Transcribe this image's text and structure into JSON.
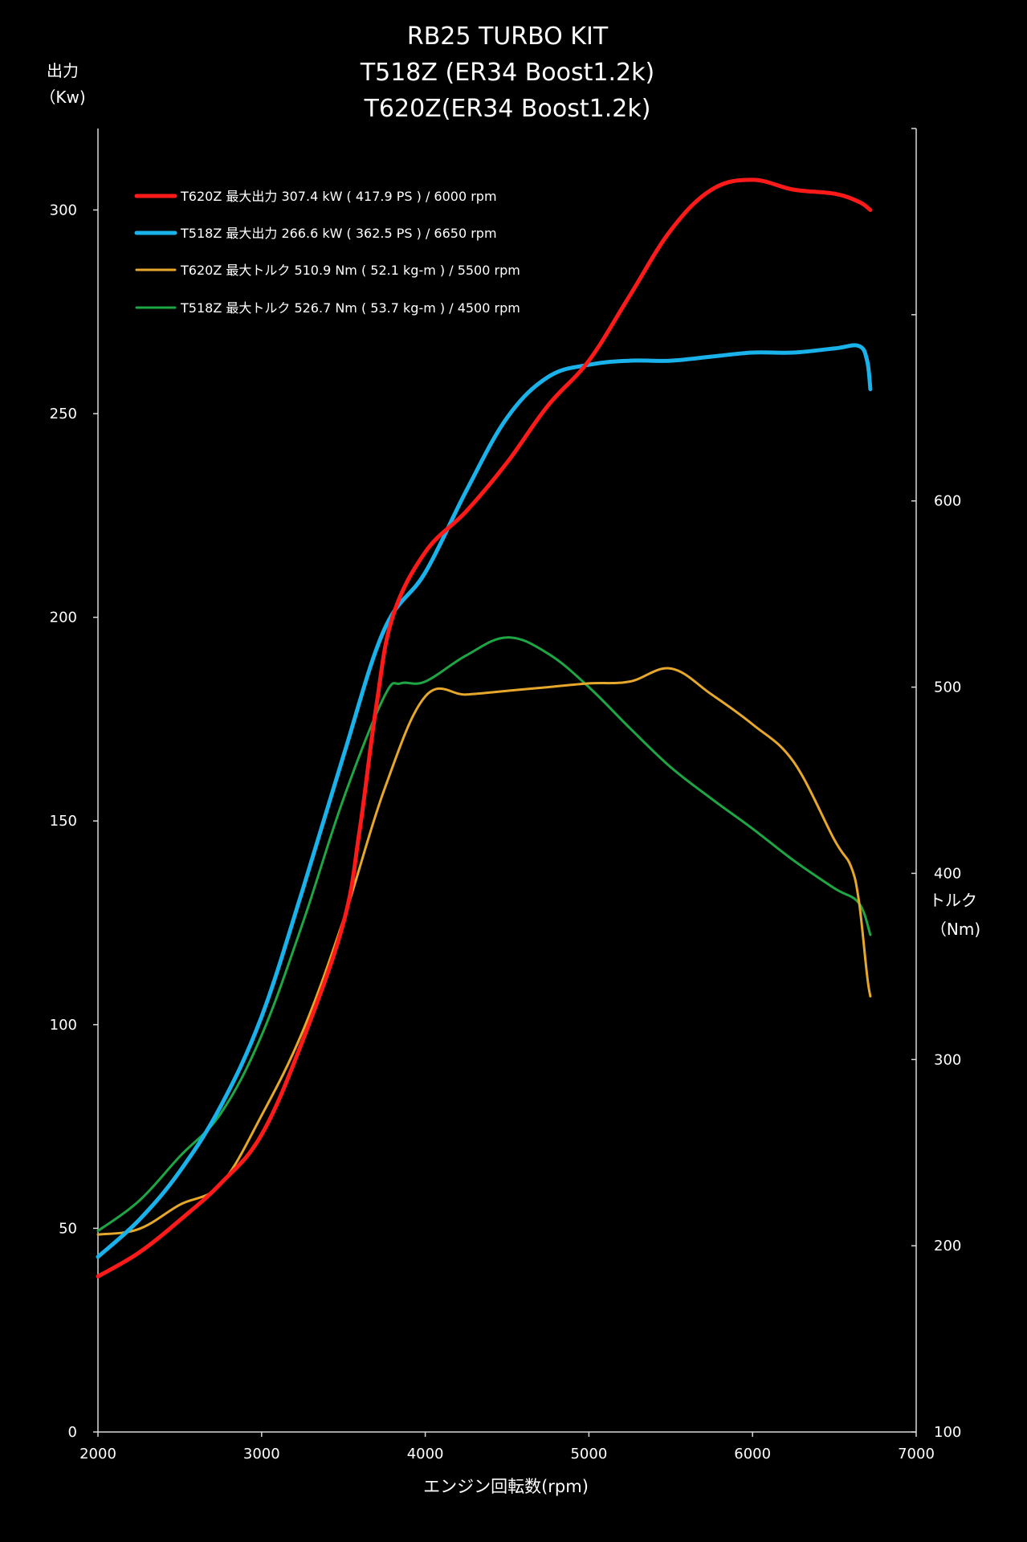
{
  "colors": {
    "background": "#000000",
    "axis": "#d9d9d9",
    "text": "#ffffff"
  },
  "chart_data": {
    "type": "line",
    "title_lines": [
      "RB25 TURBO KIT",
      "T518Z (ER34 Boost1.2k)",
      "T620Z(ER34 Boost1.2k)"
    ],
    "xlabel": "エンジン回転数(rpm)",
    "y_left_label": [
      "出力",
      "（Kw)"
    ],
    "y_right_label": [
      "トルク",
      "（Nm)"
    ],
    "xlim": [
      2000,
      7000
    ],
    "ylim_left": [
      0,
      320
    ],
    "ylim_right": [
      100,
      800
    ],
    "x_ticks": [
      "2000",
      "3000",
      "4000",
      "5000",
      "6000",
      "7000"
    ],
    "y_left_ticks": [
      "0",
      "50",
      "100",
      "150",
      "200",
      "250",
      "300"
    ],
    "y_right_ticks": [
      "100",
      "200",
      "300",
      "400",
      "500",
      "600"
    ],
    "legend_position": "top-left",
    "grid": false,
    "series": [
      {
        "name": "T620Z 最大出力 307.4 kW ( 417.9 PS ) / 6000 rpm",
        "axis": "left",
        "color": "#ff1a1a",
        "width": 5,
        "x": [
          2000,
          2250,
          2500,
          2750,
          3000,
          3250,
          3500,
          3600,
          3700,
          3800,
          4000,
          4250,
          4500,
          4750,
          5000,
          5250,
          5500,
          5750,
          6000,
          6250,
          6500,
          6650,
          6720
        ],
        "y": [
          38.2,
          44,
          52,
          61,
          73,
          96,
          125,
          148,
          178,
          200,
          216,
          226,
          238,
          252,
          263,
          279,
          295,
          305,
          307.4,
          305,
          304,
          302,
          300
        ]
      },
      {
        "name": "T518Z 最大出力 266.6 kW ( 362.5 PS ) / 6650 rpm",
        "axis": "left",
        "color": "#1ab2ea",
        "width": 5,
        "x": [
          2000,
          2250,
          2500,
          2750,
          3000,
          3250,
          3500,
          3750,
          4000,
          4250,
          4500,
          4750,
          5000,
          5250,
          5500,
          5750,
          6000,
          6250,
          6500,
          6650,
          6700,
          6720
        ],
        "y": [
          43,
          52,
          64,
          80,
          102,
          133,
          166,
          197,
          211,
          231,
          249,
          259,
          262,
          263,
          263,
          264,
          265,
          265,
          266,
          266.6,
          263,
          256
        ]
      },
      {
        "name": "T620Z 最大トルク 510.9 Nm ( 52.1 kg-m ) / 5500 rpm",
        "axis": "right",
        "color": "#e6a82a",
        "width": 3,
        "x": [
          2000,
          2250,
          2500,
          2750,
          3000,
          3250,
          3500,
          3750,
          4000,
          4250,
          4500,
          4750,
          5000,
          5250,
          5500,
          5750,
          6000,
          6250,
          6500,
          6600,
          6650,
          6700,
          6720
        ],
        "y": [
          206,
          209,
          222,
          233,
          270,
          315,
          375,
          445,
          495,
          496,
          498,
          500,
          502,
          503,
          510,
          496,
          480,
          460,
          418,
          404,
          385,
          345,
          334
        ]
      },
      {
        "name": "T518Z 最大トルク 526.7 Nm ( 53.7 kg-m ) / 4500 rpm",
        "axis": "right",
        "color": "#1fa644",
        "width": 3,
        "x": [
          2000,
          2250,
          2500,
          2750,
          3000,
          3250,
          3500,
          3750,
          3850,
          4000,
          4250,
          4500,
          4750,
          5000,
          5250,
          5500,
          5750,
          6000,
          6250,
          6500,
          6650,
          6720
        ],
        "y": [
          208,
          224,
          248,
          271,
          313,
          373,
          440,
          495,
          502,
          503,
          517,
          526.7,
          518,
          500,
          478,
          457,
          440,
          424,
          407,
          392,
          384,
          367
        ]
      }
    ]
  }
}
